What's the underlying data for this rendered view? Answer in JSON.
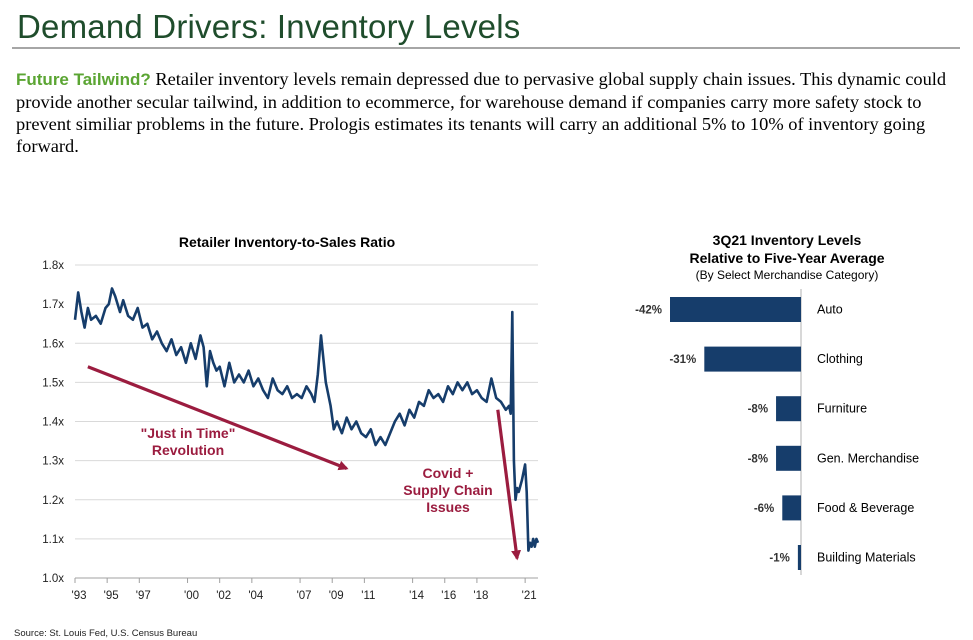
{
  "header": {
    "title": "Demand Drivers: Inventory Levels"
  },
  "intro": {
    "lead": "Future Tailwind?",
    "body": "Retailer inventory levels remain depressed due to pervasive global supply chain issues.  This dynamic could provide another secular tailwind, in addition to ecommerce, for warehouse demand if companies carry more safety stock to prevent similiar problems in the future.  Prologis estimates its tenants will carry an additional 5% to 10% of inventory going forward."
  },
  "colors": {
    "title": "#1f4d2c",
    "lead": "#5ba533",
    "series": "#163d6b",
    "bars": "#163d6b",
    "annotation": "#9b1c3f"
  },
  "chart_data": [
    {
      "type": "line",
      "title": "Retailer Inventory-to-Sales Ratio",
      "xlabel": "",
      "ylabel": "",
      "xlim": [
        1993,
        2021.8
      ],
      "ylim": [
        1.0,
        1.8
      ],
      "grid": true,
      "y_ticks": [
        1.0,
        1.1,
        1.2,
        1.3,
        1.4,
        1.5,
        1.6,
        1.7,
        1.8
      ],
      "y_tick_labels": [
        "1.0x",
        "1.1x",
        "1.2x",
        "1.3x",
        "1.4x",
        "1.5x",
        "1.6x",
        "1.7x",
        "1.8x"
      ],
      "x_ticks": [
        1993,
        1995,
        1997,
        2000,
        2002,
        2004,
        2007,
        2009,
        2011,
        2014,
        2016,
        2018,
        2021
      ],
      "x_tick_labels": [
        "'93",
        "'95",
        "'97",
        "'00",
        "'02",
        "'04",
        "'07",
        "'09",
        "'11",
        "'14",
        "'16",
        "'18",
        "'21"
      ],
      "series": [
        {
          "name": "Retailer Inventory-to-Sales Ratio",
          "x": [
            1993.0,
            1993.2,
            1993.4,
            1993.6,
            1993.8,
            1994.0,
            1994.3,
            1994.6,
            1994.9,
            1995.1,
            1995.3,
            1995.5,
            1995.8,
            1996.0,
            1996.3,
            1996.6,
            1996.9,
            1997.2,
            1997.5,
            1997.8,
            1998.1,
            1998.4,
            1998.7,
            1999.0,
            1999.3,
            1999.6,
            1999.9,
            2000.2,
            2000.5,
            2000.8,
            2001.0,
            2001.2,
            2001.4,
            2001.6,
            2001.8,
            2002.0,
            2002.3,
            2002.6,
            2002.9,
            2003.2,
            2003.5,
            2003.8,
            2004.1,
            2004.4,
            2004.7,
            2005.0,
            2005.3,
            2005.6,
            2005.9,
            2006.2,
            2006.5,
            2006.8,
            2007.1,
            2007.4,
            2007.7,
            2007.9,
            2008.1,
            2008.3,
            2008.6,
            2008.9,
            2009.1,
            2009.3,
            2009.6,
            2009.9,
            2010.2,
            2010.5,
            2010.8,
            2011.1,
            2011.4,
            2011.7,
            2012.0,
            2012.3,
            2012.6,
            2012.9,
            2013.2,
            2013.5,
            2013.8,
            2014.1,
            2014.4,
            2014.7,
            2015.0,
            2015.3,
            2015.6,
            2015.9,
            2016.2,
            2016.5,
            2016.8,
            2017.1,
            2017.4,
            2017.7,
            2018.0,
            2018.3,
            2018.6,
            2018.9,
            2019.2,
            2019.5,
            2019.8,
            2020.0,
            2020.1,
            2020.2,
            2020.3,
            2020.4,
            2020.5,
            2020.6,
            2020.8,
            2021.0,
            2021.1,
            2021.2,
            2021.3,
            2021.4,
            2021.5,
            2021.6,
            2021.7,
            2021.8
          ],
          "values": [
            1.66,
            1.73,
            1.68,
            1.64,
            1.69,
            1.66,
            1.67,
            1.65,
            1.69,
            1.7,
            1.74,
            1.72,
            1.68,
            1.71,
            1.67,
            1.66,
            1.69,
            1.64,
            1.65,
            1.61,
            1.63,
            1.6,
            1.58,
            1.61,
            1.57,
            1.59,
            1.55,
            1.6,
            1.56,
            1.62,
            1.59,
            1.49,
            1.58,
            1.55,
            1.53,
            1.54,
            1.49,
            1.55,
            1.5,
            1.52,
            1.5,
            1.53,
            1.49,
            1.51,
            1.48,
            1.46,
            1.51,
            1.48,
            1.47,
            1.49,
            1.46,
            1.47,
            1.46,
            1.49,
            1.47,
            1.45,
            1.52,
            1.62,
            1.5,
            1.44,
            1.38,
            1.4,
            1.37,
            1.41,
            1.38,
            1.4,
            1.37,
            1.36,
            1.38,
            1.34,
            1.36,
            1.34,
            1.37,
            1.4,
            1.42,
            1.39,
            1.43,
            1.41,
            1.45,
            1.44,
            1.48,
            1.46,
            1.47,
            1.45,
            1.49,
            1.47,
            1.5,
            1.48,
            1.5,
            1.47,
            1.48,
            1.46,
            1.45,
            1.51,
            1.46,
            1.45,
            1.43,
            1.44,
            1.42,
            1.68,
            1.3,
            1.2,
            1.23,
            1.22,
            1.25,
            1.29,
            1.22,
            1.07,
            1.09,
            1.08,
            1.1,
            1.08,
            1.1,
            1.09
          ]
        }
      ],
      "annotations": [
        {
          "text": [
            "\"Just in Time\"",
            "Revolution"
          ],
          "from": [
            1993.8,
            1.54
          ],
          "to": [
            2009.9,
            1.28
          ]
        },
        {
          "text": [
            "Covid +",
            "Supply Chain",
            "Issues"
          ],
          "from": [
            2019.3,
            1.43
          ],
          "to": [
            2020.5,
            1.05
          ]
        }
      ]
    },
    {
      "type": "bar",
      "orientation": "horizontal",
      "title": "3Q21 Inventory Levels",
      "subtitle": "Relative to Five-Year Average",
      "note": "(By Select Merchandise Category)",
      "categories": [
        "Auto",
        "Clothing",
        "Furniture",
        "Gen. Merchandise",
        "Food & Beverage",
        "Building Materials"
      ],
      "values": [
        -42,
        -31,
        -8,
        -8,
        -6,
        -1
      ],
      "labels": [
        "-42%",
        "-31%",
        "-8%",
        "-8%",
        "-6%",
        "-1%"
      ]
    }
  ],
  "footer": {
    "source": "Source: St. Louis Fed, U.S. Census Bureau"
  }
}
